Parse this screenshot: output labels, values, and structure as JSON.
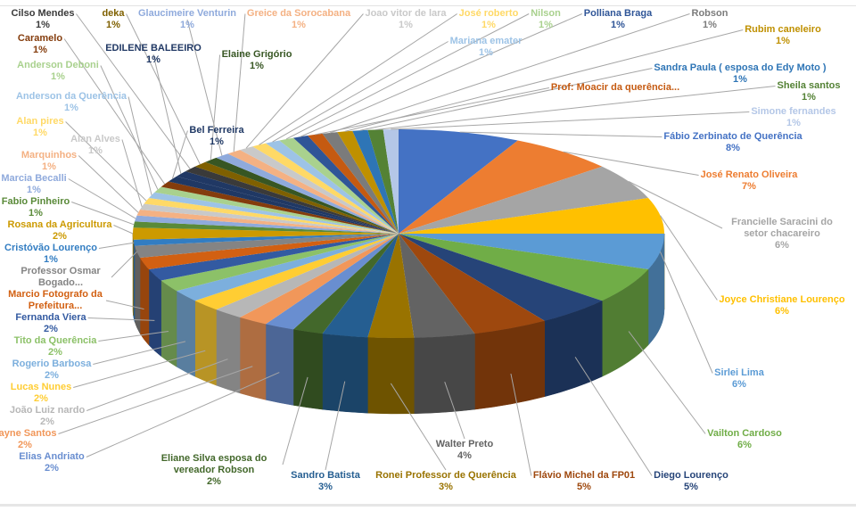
{
  "chart_data": {
    "type": "pie",
    "style": "3d",
    "title": "",
    "slices": [
      {
        "label": "Fábio Zerbinato de Querência",
        "value": 8,
        "pct_label": "8%",
        "color": "#4472C4"
      },
      {
        "label": "José Renato Oliveira",
        "value": 7,
        "pct_label": "7%",
        "color": "#ED7D31"
      },
      {
        "label": "Francielle Saracini  do setor chacareiro",
        "value": 6,
        "pct_label": "6%",
        "color": "#A5A5A5"
      },
      {
        "label": "Joyce Christiane Lourenço",
        "value": 6,
        "pct_label": "6%",
        "color": "#FFC000"
      },
      {
        "label": "Sirlei Lima",
        "value": 6,
        "pct_label": "6%",
        "color": "#5B9BD5"
      },
      {
        "label": "Vailton Cardoso",
        "value": 6,
        "pct_label": "6%",
        "color": "#70AD47"
      },
      {
        "label": "Diego Lourenço",
        "value": 5,
        "pct_label": "5%",
        "color": "#264478"
      },
      {
        "label": "Flávio Michel da FP01",
        "value": 5,
        "pct_label": "5%",
        "color": "#9E480E"
      },
      {
        "label": "Walter Preto",
        "value": 4,
        "pct_label": "4%",
        "color": "#636363"
      },
      {
        "label": "Ronei Professor de Querência",
        "value": 3,
        "pct_label": "3%",
        "color": "#997300"
      },
      {
        "label": "Sandro Batista",
        "value": 3,
        "pct_label": "3%",
        "color": "#255E91"
      },
      {
        "label": "Eliane Silva esposa do vereador Robson",
        "value": 2,
        "pct_label": "2%",
        "color": "#43682B"
      },
      {
        "label": "Elias Andriato",
        "value": 2,
        "pct_label": "2%",
        "color": "#698ED0"
      },
      {
        "label": "Jayne Santos",
        "value": 2,
        "pct_label": "2%",
        "color": "#F1975A"
      },
      {
        "label": "João Luiz nardo",
        "value": 2,
        "pct_label": "2%",
        "color": "#B7B7B7"
      },
      {
        "label": "Lucas Nunes",
        "value": 2,
        "pct_label": "2%",
        "color": "#FFCD33"
      },
      {
        "label": "Rogerio Barbosa",
        "value": 2,
        "pct_label": "2%",
        "color": "#7CAFDD"
      },
      {
        "label": "Tito da Querência",
        "value": 2,
        "pct_label": "2%",
        "color": "#8CC168"
      },
      {
        "label": "Fernanda Viera",
        "value": 2,
        "pct_label": "2%",
        "color": "#335AA1"
      },
      {
        "label": "Marcio Fotografo da Prefeitura...",
        "value": 2,
        "pct_label": "",
        "color": "#D26012"
      },
      {
        "label": "Professor Osmar Bogado...",
        "value": 2,
        "pct_label": "",
        "color": "#848484"
      },
      {
        "label": "Cristóvão Lourenço",
        "value": 1,
        "pct_label": "1%",
        "color": "#327DC2"
      },
      {
        "label": "Rosana da Agricultura",
        "value": 2,
        "pct_label": "2%",
        "color": "#CC9A00"
      },
      {
        "label": "Fabio Pinheiro",
        "value": 1,
        "pct_label": "1%",
        "color": "#5A8A39"
      },
      {
        "label": "Marcia Becalli",
        "value": 1,
        "pct_label": "1%",
        "color": "#8FAADC"
      },
      {
        "label": "Marquinhos",
        "value": 1,
        "pct_label": "1%",
        "color": "#F4B183"
      },
      {
        "label": "Alan Alves",
        "value": 1,
        "pct_label": "1%",
        "color": "#C9C9C9"
      },
      {
        "label": "Alan pires",
        "value": 1,
        "pct_label": "1%",
        "color": "#FFD966"
      },
      {
        "label": "Anderson da Querência",
        "value": 1,
        "pct_label": "1%",
        "color": "#9DC3E6"
      },
      {
        "label": "Anderson Deboni",
        "value": 1,
        "pct_label": "1%",
        "color": "#A9D18E"
      },
      {
        "label": "Caramelo",
        "value": 1,
        "pct_label": "1%",
        "color": "#843C0C"
      },
      {
        "label": "Bel Ferreira",
        "value": 1,
        "pct_label": "1%",
        "color": "#1F3864"
      },
      {
        "label": "EDILENE BALEEIRO",
        "value": 1,
        "pct_label": "1%",
        "color": "#203864"
      },
      {
        "label": "Cilso Mendes",
        "value": 1,
        "pct_label": "1%",
        "color": "#3A3A3A"
      },
      {
        "label": "deka",
        "value": 1,
        "pct_label": "1%",
        "color": "#7F6000"
      },
      {
        "label": "Elaine Grigório",
        "value": 1,
        "pct_label": "1%",
        "color": "#375623"
      },
      {
        "label": "Glaucimeire Venturin",
        "value": 1,
        "pct_label": "1%",
        "color": "#8FAADC"
      },
      {
        "label": "Greice da Sorocabana",
        "value": 1,
        "pct_label": "1%",
        "color": "#F4B183"
      },
      {
        "label": "Joao vitor de lara",
        "value": 1,
        "pct_label": "1%",
        "color": "#C9C9C9"
      },
      {
        "label": "José roberto",
        "value": 1,
        "pct_label": "1%",
        "color": "#FFD966"
      },
      {
        "label": "Mariana emater",
        "value": 1,
        "pct_label": "1%",
        "color": "#9DC3E6"
      },
      {
        "label": "Nilson",
        "value": 1,
        "pct_label": "1%",
        "color": "#A9D18E"
      },
      {
        "label": "Polliana Braga",
        "value": 1,
        "pct_label": "1%",
        "color": "#2F5597"
      },
      {
        "label": "Prof: Moacir da querência...",
        "value": 1,
        "pct_label": "",
        "color": "#C55A11"
      },
      {
        "label": "Robson",
        "value": 1,
        "pct_label": "1%",
        "color": "#7B7B7B"
      },
      {
        "label": "Rubim caneleiro",
        "value": 1,
        "pct_label": "1%",
        "color": "#BF9000"
      },
      {
        "label": "Sandra Paula ( esposa do Edy Moto )",
        "value": 1,
        "pct_label": "1%",
        "color": "#2E75B6"
      },
      {
        "label": "Sheila santos",
        "value": 1,
        "pct_label": "1%",
        "color": "#548235"
      },
      {
        "label": "Simone fernandes",
        "value": 1,
        "pct_label": "1%",
        "color": "#B4C7E7"
      }
    ]
  }
}
